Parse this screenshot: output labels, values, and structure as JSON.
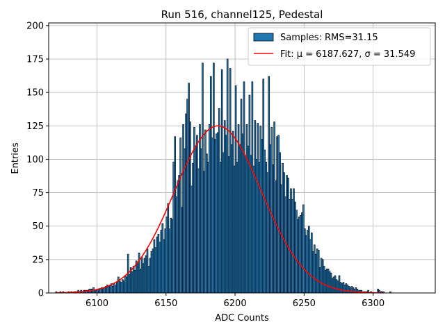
{
  "chart_data": {
    "type": "bar",
    "title": "Run 516, channel125, Pedestal",
    "xlabel": "ADC Counts",
    "ylabel": "Entries",
    "xlim": [
      6065,
      6345
    ],
    "ylim": [
      0,
      202
    ],
    "x_ticks": [
      6100,
      6150,
      6200,
      6250,
      6300
    ],
    "y_ticks": [
      0,
      25,
      50,
      75,
      100,
      125,
      150,
      175,
      200
    ],
    "grid": true,
    "legend_position": "top-right",
    "bar_color": "#1f77b4",
    "fit_color": "#ff0000",
    "series": [
      {
        "name": "Samples: RMS=31.15",
        "kind": "histogram",
        "bin_start": 6070,
        "bin_width": 1,
        "values": [
          1,
          0,
          0,
          1,
          0,
          1,
          0,
          0,
          0,
          1,
          0,
          1,
          0,
          1,
          1,
          1,
          2,
          1,
          2,
          1,
          2,
          2,
          2,
          2,
          3,
          3,
          3,
          4,
          2,
          2,
          3,
          3,
          3,
          4,
          4,
          4,
          5,
          6,
          5,
          6,
          7,
          5,
          7,
          6,
          8,
          12,
          9,
          8,
          10,
          9,
          13,
          12,
          29,
          14,
          19,
          16,
          20,
          17,
          24,
          22,
          30,
          18,
          27,
          22,
          26,
          28,
          33,
          20,
          26,
          31,
          33,
          40,
          34,
          42,
          44,
          38,
          47,
          52,
          40,
          48,
          57,
          67,
          48,
          56,
          55,
          98,
          117,
          72,
          84,
          88,
          116,
          64,
          126,
          108,
          134,
          145,
          157,
          128,
          80,
          97,
          124,
          110,
          118,
          93,
          126,
          108,
          172,
          91,
          122,
          104,
          98,
          126,
          162,
          116,
          172,
          115,
          119,
          120,
          138,
          98,
          167,
          105,
          129,
          118,
          175,
          102,
          168,
          111,
          121,
          95,
          155,
          98,
          126,
          111,
          145,
          119,
          158,
          102,
          126,
          110,
          148,
          103,
          158,
          95,
          129,
          100,
          127,
          98,
          125,
          115,
          160,
          107,
          98,
          90,
          162,
          111,
          124,
          96,
          128,
          84,
          117,
          118,
          105,
          81,
          97,
          90,
          72,
          88,
          86,
          70,
          78,
          70,
          78,
          68,
          62,
          55,
          57,
          58,
          60,
          66,
          48,
          43,
          47,
          50,
          40,
          45,
          31,
          36,
          29,
          33,
          32,
          19,
          26,
          25,
          20,
          17,
          18,
          18,
          16,
          15,
          11,
          12,
          13,
          10,
          9,
          13,
          8,
          7,
          8,
          6,
          7,
          6,
          5,
          4,
          5,
          4,
          3,
          4,
          3,
          2,
          2,
          2,
          1,
          1,
          1,
          1,
          2,
          0,
          1,
          0,
          0,
          0,
          0,
          3,
          2,
          1,
          1,
          1,
          0,
          0,
          0,
          0,
          1
        ]
      },
      {
        "name": "Fit: μ = 6187.627, σ = 31.549",
        "kind": "gaussian_fit",
        "mu": 6187.627,
        "sigma": 31.549,
        "amplitude": 125,
        "x_range": [
          6070,
          6308
        ]
      }
    ]
  }
}
